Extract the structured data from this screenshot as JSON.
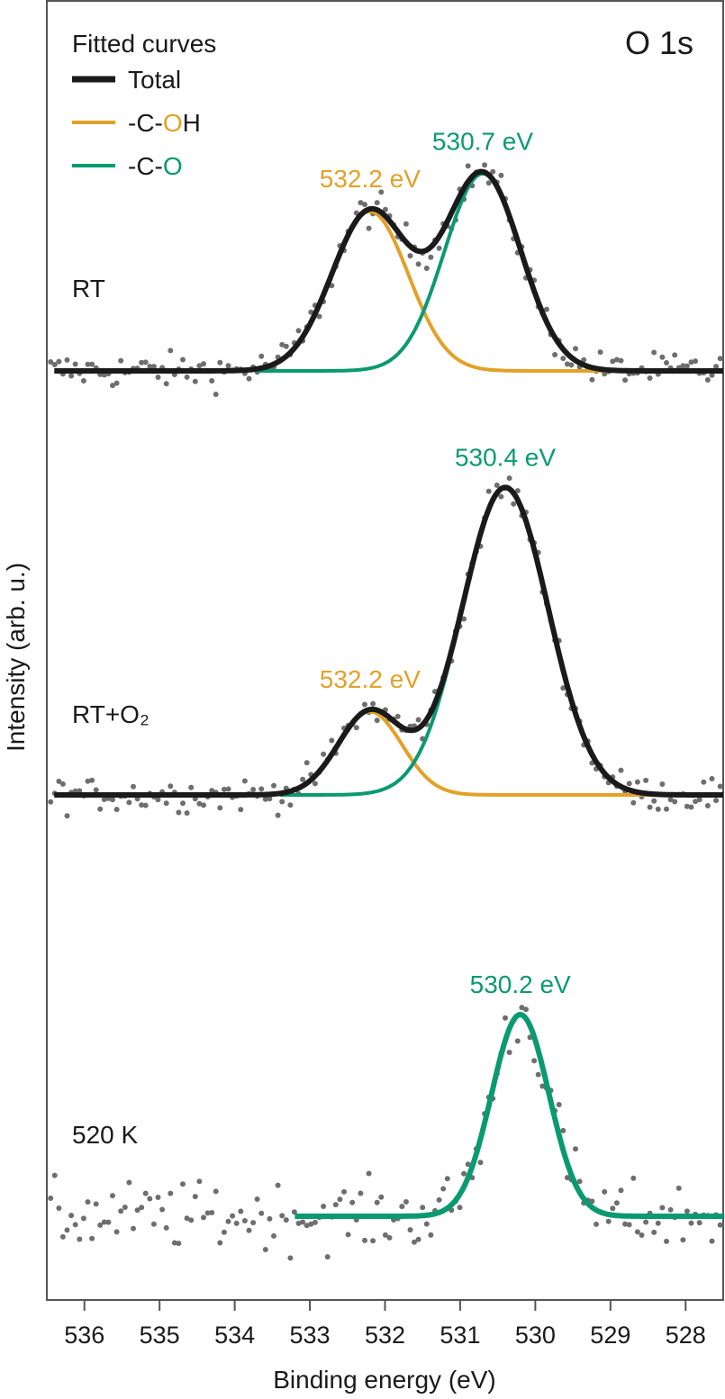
{
  "chart_data": {
    "type": "line",
    "title": "O 1s",
    "xlabel": "Binding energy (eV)",
    "ylabel": "Intensity (arb. u.)",
    "xlim": [
      536.5,
      527.5
    ],
    "x_direction": "decreasing",
    "x_ticks": [
      "536",
      "535",
      "534",
      "533",
      "532",
      "531",
      "530",
      "529",
      "528"
    ],
    "x_tick_values": [
      536,
      535,
      534,
      533,
      532,
      531,
      530,
      529,
      528
    ],
    "legend": {
      "title": "Fitted curves",
      "entries": [
        {
          "name": "Total",
          "color": "#1a1a1a",
          "parts": [
            {
              "text": "Total",
              "color": "#1a1a1a"
            }
          ]
        },
        {
          "name": "-C-OH",
          "color": "#e3a127",
          "parts": [
            {
              "text": "-C-",
              "color": "#1a1a1a"
            },
            {
              "text": "O",
              "color": "#e3a127"
            },
            {
              "text": "H",
              "color": "#1a1a1a"
            }
          ]
        },
        {
          "name": "-C-O",
          "color": "#0a9a72",
          "parts": [
            {
              "text": "-C-",
              "color": "#1a1a1a"
            },
            {
              "text": "O",
              "color": "#0a9a72"
            }
          ]
        }
      ]
    },
    "colors": {
      "total": "#1a1a1a",
      "coh": "#e3a127",
      "co": "#0a9a72",
      "data": "#6e6e6e"
    },
    "panels": [
      {
        "label": "RT",
        "series": [
          {
            "name": "-C-OH",
            "center": 532.2,
            "height": 0.59,
            "fwhm": 1.2
          },
          {
            "name": "-C-O",
            "center": 530.7,
            "height": 0.73,
            "fwhm": 1.2
          }
        ],
        "annotations": [
          {
            "text": "532.2 eV",
            "x": 532.2,
            "series": "-C-OH"
          },
          {
            "text": "530.7 eV",
            "x": 530.7,
            "series": "-C-O"
          }
        ],
        "noise": 0.06
      },
      {
        "label": "RT+O₂",
        "series": [
          {
            "name": "-C-OH",
            "center": 532.2,
            "height": 0.33,
            "fwhm": 1.0
          },
          {
            "name": "-C-O",
            "center": 530.4,
            "height": 1.22,
            "fwhm": 1.35
          }
        ],
        "annotations": [
          {
            "text": "532.2 eV",
            "x": 532.2,
            "series": "-C-OH"
          },
          {
            "text": "530.4 eV",
            "x": 530.4,
            "series": "-C-O"
          }
        ],
        "noise": 0.06
      },
      {
        "label": "520 K",
        "series": [
          {
            "name": "-C-O",
            "center": 530.2,
            "height": 0.8,
            "fwhm": 0.9
          }
        ],
        "annotations": [
          {
            "text": "530.2 eV",
            "x": 530.2,
            "series": "-C-O"
          }
        ],
        "noise": 0.12
      }
    ]
  }
}
